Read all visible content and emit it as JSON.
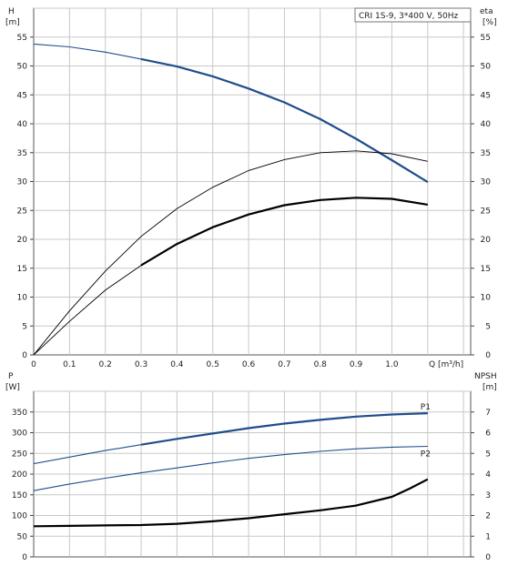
{
  "chart_data": [
    {
      "type": "line",
      "title": "CRI 1S-9, 3*400 V, 50Hz",
      "x_axis": {
        "label": "Q [m³/h]",
        "ticks": [
          "0",
          "0.1",
          "0.2",
          "0.3",
          "0.4",
          "0.5",
          "0.6",
          "0.7",
          "0.8",
          "0.9",
          "1.0"
        ],
        "range": [
          0,
          1.22
        ]
      },
      "y_left": {
        "label_line1": "H",
        "label_line2": "[m]",
        "ticks": [
          "0",
          "5",
          "10",
          "15",
          "20",
          "25",
          "30",
          "35",
          "40",
          "45",
          "50",
          "55"
        ],
        "range": [
          0,
          60
        ]
      },
      "y_right": {
        "label_line1": "eta",
        "label_line2": "[%]",
        "ticks": [
          "0",
          "5",
          "10",
          "15",
          "20",
          "25",
          "30",
          "35",
          "40",
          "45",
          "50",
          "55"
        ],
        "range": [
          0,
          60
        ]
      },
      "grid": true,
      "series": [
        {
          "axis": "left",
          "color": "#1f4e8c",
          "x": [
            0,
            0.1,
            0.2,
            0.3,
            0.4,
            0.5,
            0.6,
            0.7,
            0.8,
            0.9,
            1.0,
            1.1
          ],
          "y": [
            53.8,
            53.3,
            52.4,
            51.2,
            49.9,
            48.2,
            46.1,
            43.7,
            40.8,
            37.4,
            33.7,
            29.9
          ],
          "bold_from_x": 0.3
        },
        {
          "axis": "right",
          "color": "#000000",
          "x": [
            0,
            0.1,
            0.2,
            0.3,
            0.4,
            0.5,
            0.6,
            0.7,
            0.8,
            0.9,
            1.0,
            1.1
          ],
          "y": [
            0,
            7.6,
            14.5,
            20.5,
            25.3,
            29.0,
            31.9,
            33.8,
            35.0,
            35.3,
            34.8,
            33.5
          ],
          "bold_from_x": null
        },
        {
          "axis": "right",
          "color": "#000000",
          "x": [
            0,
            0.1,
            0.2,
            0.3,
            0.4,
            0.5,
            0.6,
            0.7,
            0.8,
            0.9,
            1.0,
            1.1
          ],
          "y": [
            0,
            5.8,
            11.2,
            15.5,
            19.2,
            22.1,
            24.3,
            25.9,
            26.8,
            27.2,
            27.0,
            26.0
          ],
          "bold_from_x": 0.3
        }
      ]
    },
    {
      "type": "line",
      "x_axis": {
        "ticks": [],
        "range": [
          0,
          1.22
        ]
      },
      "y_left": {
        "label_line1": "P",
        "label_line2": "[W]",
        "ticks": [
          "0",
          "50",
          "100",
          "150",
          "200",
          "250",
          "300",
          "350"
        ],
        "range": [
          0,
          400
        ]
      },
      "y_right": {
        "label_line1": "NPSH",
        "label_line2": "[m]",
        "ticks": [
          "0",
          "1",
          "2",
          "3",
          "4",
          "5",
          "6",
          "7"
        ],
        "range": [
          0,
          8
        ]
      },
      "grid": true,
      "series": [
        {
          "name": "P1",
          "axis": "left",
          "color": "#1f4e8c",
          "x": [
            0,
            0.1,
            0.2,
            0.3,
            0.4,
            0.5,
            0.6,
            0.7,
            0.8,
            0.9,
            1.0,
            1.1
          ],
          "y": [
            225,
            241,
            257,
            271,
            285,
            298,
            311,
            322,
            331,
            339,
            344,
            347
          ],
          "bold_from_x": 0.3
        },
        {
          "name": "P2",
          "axis": "left",
          "color": "#1f4e8c",
          "x": [
            0,
            0.1,
            0.2,
            0.3,
            0.4,
            0.5,
            0.6,
            0.7,
            0.8,
            0.9,
            1.0,
            1.1
          ],
          "y": [
            160,
            176,
            190,
            203,
            215,
            227,
            238,
            247,
            255,
            261,
            265,
            267
          ],
          "bold_from_x": null
        },
        {
          "axis": "right",
          "color": "#000000",
          "x": [
            0,
            0.1,
            0.2,
            0.3,
            0.4,
            0.5,
            0.6,
            0.7,
            0.8,
            0.9,
            1.0,
            1.05,
            1.1
          ],
          "y": [
            1.48,
            1.5,
            1.52,
            1.54,
            1.6,
            1.72,
            1.87,
            2.06,
            2.25,
            2.48,
            2.9,
            3.3,
            3.75
          ],
          "bold_from_x": 0
        }
      ]
    }
  ]
}
